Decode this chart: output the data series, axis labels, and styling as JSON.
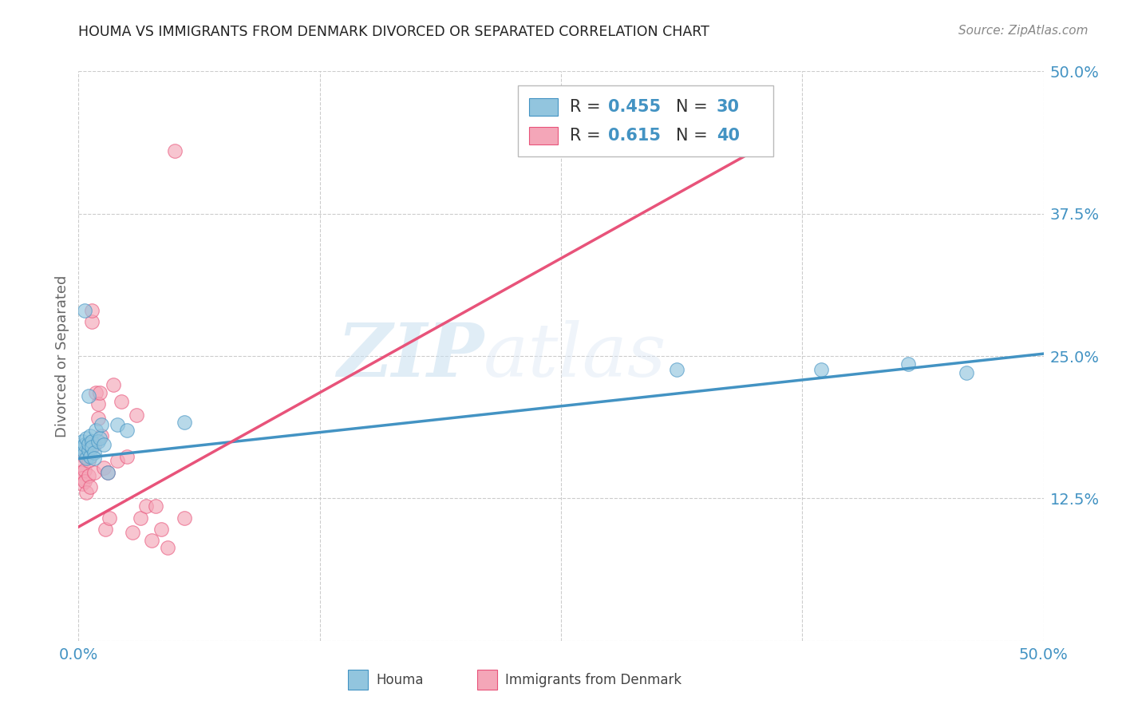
{
  "title": "HOUMA VS IMMIGRANTS FROM DENMARK DIVORCED OR SEPARATED CORRELATION CHART",
  "source": "Source: ZipAtlas.com",
  "ylabel": "Divorced or Separated",
  "xlim": [
    0.0,
    0.5
  ],
  "ylim": [
    0.0,
    0.5
  ],
  "xticks": [
    0.0,
    0.125,
    0.25,
    0.375,
    0.5
  ],
  "yticks": [
    0.0,
    0.125,
    0.25,
    0.375,
    0.5
  ],
  "xtick_labels": [
    "0.0%",
    "",
    "",
    "",
    "50.0%"
  ],
  "ytick_labels": [
    "",
    "12.5%",
    "25.0%",
    "37.5%",
    "50.0%"
  ],
  "watermark_zip": "ZIP",
  "watermark_atlas": "atlas",
  "legend_r1": "0.455",
  "legend_n1": "30",
  "legend_r2": "0.615",
  "legend_n2": "40",
  "color_blue": "#92c5de",
  "color_pink": "#f4a6b8",
  "color_blue_line": "#4393c3",
  "color_pink_line": "#e8537a",
  "houma_x": [
    0.001,
    0.002,
    0.002,
    0.003,
    0.003,
    0.004,
    0.004,
    0.005,
    0.005,
    0.006,
    0.006,
    0.007,
    0.007,
    0.008,
    0.009,
    0.01,
    0.011,
    0.012,
    0.013,
    0.015,
    0.02,
    0.025,
    0.055,
    0.31,
    0.385,
    0.43,
    0.46,
    0.003,
    0.005,
    0.008
  ],
  "houma_y": [
    0.17,
    0.168,
    0.175,
    0.165,
    0.172,
    0.16,
    0.178,
    0.167,
    0.173,
    0.162,
    0.18,
    0.175,
    0.17,
    0.165,
    0.185,
    0.175,
    0.178,
    0.19,
    0.172,
    0.148,
    0.19,
    0.185,
    0.192,
    0.238,
    0.238,
    0.243,
    0.235,
    0.29,
    0.215,
    0.16
  ],
  "denmark_x": [
    0.001,
    0.001,
    0.002,
    0.002,
    0.003,
    0.003,
    0.003,
    0.004,
    0.004,
    0.005,
    0.005,
    0.006,
    0.006,
    0.007,
    0.007,
    0.008,
    0.008,
    0.009,
    0.01,
    0.01,
    0.011,
    0.012,
    0.013,
    0.014,
    0.015,
    0.016,
    0.018,
    0.02,
    0.022,
    0.025,
    0.028,
    0.03,
    0.032,
    0.035,
    0.038,
    0.04,
    0.043,
    0.046,
    0.05,
    0.055
  ],
  "denmark_y": [
    0.155,
    0.148,
    0.143,
    0.138,
    0.162,
    0.15,
    0.14,
    0.168,
    0.13,
    0.158,
    0.145,
    0.172,
    0.135,
    0.28,
    0.29,
    0.148,
    0.172,
    0.218,
    0.208,
    0.195,
    0.218,
    0.18,
    0.152,
    0.098,
    0.148,
    0.108,
    0.225,
    0.158,
    0.21,
    0.162,
    0.095,
    0.198,
    0.108,
    0.118,
    0.088,
    0.118,
    0.098,
    0.082,
    0.43,
    0.108
  ],
  "blue_line_x": [
    0.0,
    0.5
  ],
  "blue_line_y": [
    0.16,
    0.252
  ],
  "pink_line_x": [
    0.0,
    0.35
  ],
  "pink_line_y": [
    0.1,
    0.43
  ]
}
